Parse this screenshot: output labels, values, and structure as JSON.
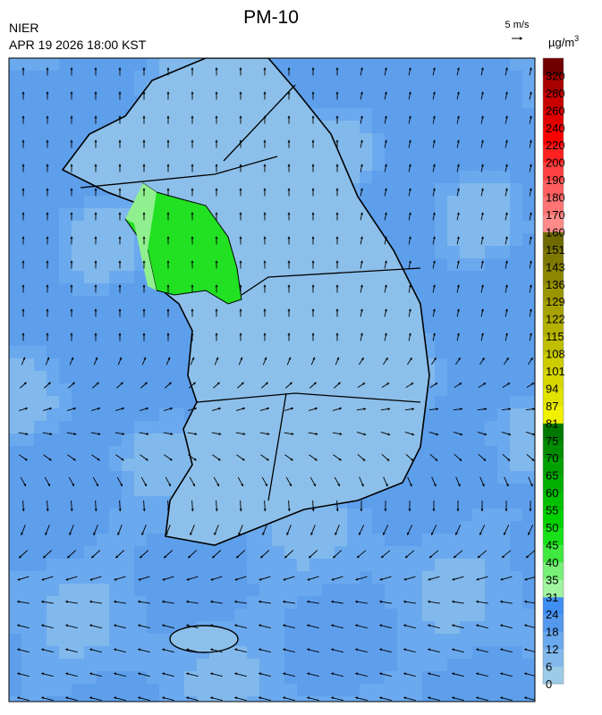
{
  "header": {
    "title": "PM-10",
    "agency": "NIER",
    "datetime": "APR 19 2026 18:00 KST",
    "wind_scale": "5 m/s"
  },
  "legend": {
    "unit": "µg/m",
    "unit_exp": "3",
    "levels": [
      0,
      6,
      12,
      18,
      24,
      31,
      35,
      40,
      45,
      50,
      55,
      60,
      65,
      70,
      75,
      81,
      87,
      94,
      101,
      108,
      115,
      122,
      129,
      136,
      143,
      151,
      160,
      170,
      180,
      190,
      200,
      220,
      240,
      260,
      280,
      320
    ],
    "colors": [
      "#9ccbe8",
      "#82b9ec",
      "#6ba9ee",
      "#5599ee",
      "#3f8ff2",
      "#a0f5a0",
      "#78f078",
      "#40e840",
      "#18e018",
      "#00d000",
      "#00c000",
      "#00b000",
      "#00a000",
      "#008c00",
      "#007800",
      "#f0f000",
      "#e2e200",
      "#d6d600",
      "#cccc00",
      "#c0be00",
      "#b4b000",
      "#a8a200",
      "#9a9400",
      "#8c8600",
      "#7e7800",
      "#6e6a00",
      "#ff8a8a",
      "#ff7474",
      "#ff5e5e",
      "#ff4040",
      "#ff2020",
      "#ff0000",
      "#e00000",
      "#c80000",
      "#a80000",
      "#700000"
    ]
  }
}
